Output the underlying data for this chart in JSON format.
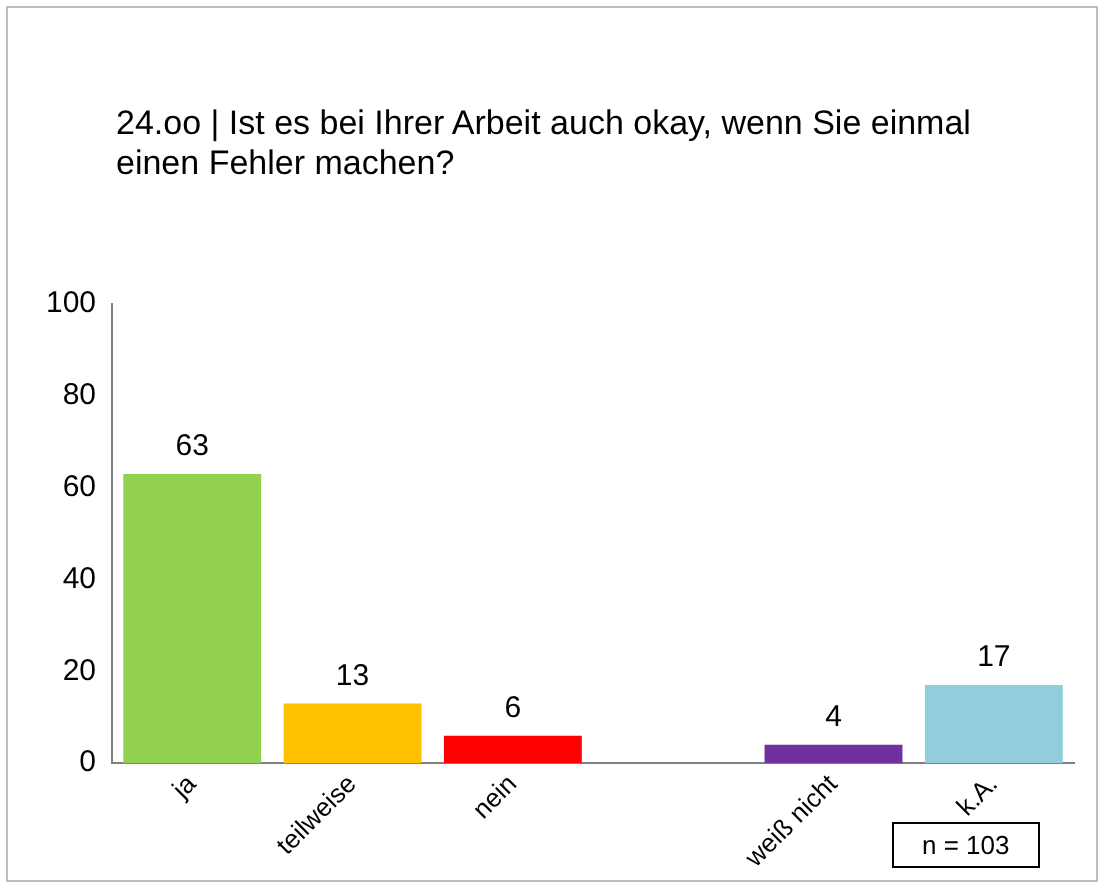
{
  "chart_data": {
    "type": "bar",
    "title": "24.oo |  Ist es bei Ihrer Arbeit auch okay, wenn Sie einmal einen Fehler machen?",
    "categories": [
      "ja",
      "teilweise",
      "nein",
      null,
      "weiß nicht",
      "k.A."
    ],
    "values": [
      63,
      13,
      6,
      null,
      4,
      17
    ],
    "colors": [
      "#92d050",
      "#ffc000",
      "#ff0000",
      null,
      "#7030a0",
      "#92cddc"
    ],
    "ylim": [
      0,
      100
    ],
    "yticks": [
      0,
      20,
      40,
      60,
      80,
      100
    ],
    "grid": false,
    "legend": false,
    "data_labels": true,
    "annotations": [
      "n = 103"
    ]
  }
}
